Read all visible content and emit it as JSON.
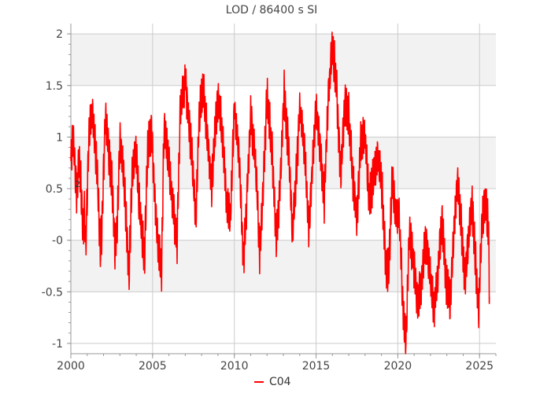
{
  "chart_data": {
    "type": "line",
    "title": "LOD / 86400 s SI",
    "xlabel": "",
    "ylabel": "",
    "xlim": [
      2000,
      2026
    ],
    "ylim": [
      -1.1,
      2.1
    ],
    "x_ticks": [
      2000,
      2005,
      2010,
      2015,
      2020,
      2025
    ],
    "x_tick_labels": [
      "2000",
      "2005",
      "2010",
      "2015",
      "2020",
      "2025"
    ],
    "y_ticks": [
      -1,
      -0.5,
      0,
      0.5,
      1,
      1.5,
      2
    ],
    "y_tick_labels": [
      "-1",
      "-0.5",
      "-0",
      "0.5",
      "1",
      "1.5",
      "2"
    ],
    "grid": true,
    "alternating_bands": true,
    "legend_position": "bottom-center",
    "stray_label": "2",
    "colors": {
      "series": "#ff0000",
      "band": "#f2f2f2",
      "grid": "#cccccc",
      "axis": "#999999"
    },
    "series": [
      {
        "name": "C04",
        "anchors": [
          [
            2000.0,
            0.75
          ],
          [
            2000.15,
            1.0
          ],
          [
            2000.35,
            0.45
          ],
          [
            2000.5,
            0.75
          ],
          [
            2000.6,
            0.6
          ],
          [
            2000.75,
            0.1
          ],
          [
            2000.85,
            0.3
          ],
          [
            2000.9,
            -0.15
          ],
          [
            2001.1,
            1.0
          ],
          [
            2001.3,
            1.25
          ],
          [
            2001.5,
            0.9
          ],
          [
            2001.65,
            0.55
          ],
          [
            2001.8,
            -0.1
          ],
          [
            2001.9,
            0.1
          ],
          [
            2002.1,
            1.2
          ],
          [
            2002.3,
            0.9
          ],
          [
            2002.5,
            0.6
          ],
          [
            2002.7,
            -0.1
          ],
          [
            2002.85,
            0.2
          ],
          [
            2003.0,
            1.0
          ],
          [
            2003.2,
            0.7
          ],
          [
            2003.35,
            0.3
          ],
          [
            2003.55,
            -0.35
          ],
          [
            2003.75,
            0.6
          ],
          [
            2004.0,
            0.9
          ],
          [
            2004.15,
            0.4
          ],
          [
            2004.35,
            0.1
          ],
          [
            2004.5,
            -0.2
          ],
          [
            2004.7,
            0.9
          ],
          [
            2004.95,
            1.05
          ],
          [
            2005.1,
            0.5
          ],
          [
            2005.35,
            -0.1
          ],
          [
            2005.55,
            -0.3
          ],
          [
            2005.7,
            1.1
          ],
          [
            2005.95,
            0.8
          ],
          [
            2006.2,
            0.4
          ],
          [
            2006.5,
            0.0
          ],
          [
            2006.7,
            1.3
          ],
          [
            2007.0,
            1.55
          ],
          [
            2007.3,
            1.0
          ],
          [
            2007.5,
            0.6
          ],
          [
            2007.65,
            0.2
          ],
          [
            2007.85,
            1.2
          ],
          [
            2008.1,
            1.45
          ],
          [
            2008.4,
            0.9
          ],
          [
            2008.6,
            0.5
          ],
          [
            2008.8,
            1.0
          ],
          [
            2009.0,
            1.4
          ],
          [
            2009.3,
            1.0
          ],
          [
            2009.55,
            0.3
          ],
          [
            2009.75,
            0.2
          ],
          [
            2010.0,
            1.3
          ],
          [
            2010.3,
            0.8
          ],
          [
            2010.55,
            -0.2
          ],
          [
            2010.7,
            0.2
          ],
          [
            2011.0,
            1.2
          ],
          [
            2011.3,
            0.8
          ],
          [
            2011.55,
            -0.1
          ],
          [
            2011.7,
            0.3
          ],
          [
            2012.0,
            1.4
          ],
          [
            2012.3,
            0.9
          ],
          [
            2012.55,
            0.0
          ],
          [
            2012.75,
            0.4
          ],
          [
            2013.05,
            1.45
          ],
          [
            2013.3,
            0.9
          ],
          [
            2013.55,
            0.1
          ],
          [
            2013.75,
            0.5
          ],
          [
            2014.0,
            1.3
          ],
          [
            2014.3,
            0.9
          ],
          [
            2014.55,
            0.1
          ],
          [
            2014.7,
            0.5
          ],
          [
            2015.0,
            1.3
          ],
          [
            2015.3,
            0.8
          ],
          [
            2015.5,
            0.4
          ],
          [
            2015.75,
            1.4
          ],
          [
            2016.0,
            1.9
          ],
          [
            2016.25,
            1.5
          ],
          [
            2016.5,
            0.6
          ],
          [
            2016.75,
            1.3
          ],
          [
            2017.0,
            1.2
          ],
          [
            2017.3,
            0.5
          ],
          [
            2017.5,
            0.2
          ],
          [
            2017.75,
            1.0
          ],
          [
            2018.0,
            1.0
          ],
          [
            2018.25,
            0.4
          ],
          [
            2018.5,
            0.6
          ],
          [
            2018.75,
            0.8
          ],
          [
            2019.0,
            0.6
          ],
          [
            2019.25,
            -0.2
          ],
          [
            2019.45,
            -0.3
          ],
          [
            2019.65,
            0.6
          ],
          [
            2019.85,
            0.3
          ],
          [
            2020.1,
            0.2
          ],
          [
            2020.35,
            -0.8
          ],
          [
            2020.5,
            -1.0
          ],
          [
            2020.7,
            0.1
          ],
          [
            2020.95,
            -0.2
          ],
          [
            2021.2,
            -0.6
          ],
          [
            2021.45,
            -0.4
          ],
          [
            2021.7,
            0.0
          ],
          [
            2021.95,
            -0.3
          ],
          [
            2022.2,
            -0.7
          ],
          [
            2022.45,
            -0.3
          ],
          [
            2022.7,
            0.2
          ],
          [
            2022.95,
            -0.4
          ],
          [
            2023.2,
            -0.6
          ],
          [
            2023.4,
            0.0
          ],
          [
            2023.65,
            0.6
          ],
          [
            2023.9,
            0.1
          ],
          [
            2024.1,
            -0.4
          ],
          [
            2024.35,
            0.1
          ],
          [
            2024.55,
            0.35
          ],
          [
            2024.75,
            -0.2
          ],
          [
            2024.95,
            -0.7
          ],
          [
            2025.15,
            0.2
          ],
          [
            2025.35,
            0.35
          ],
          [
            2025.55,
            0.1
          ],
          [
            2025.6,
            -0.55
          ]
        ]
      }
    ]
  }
}
